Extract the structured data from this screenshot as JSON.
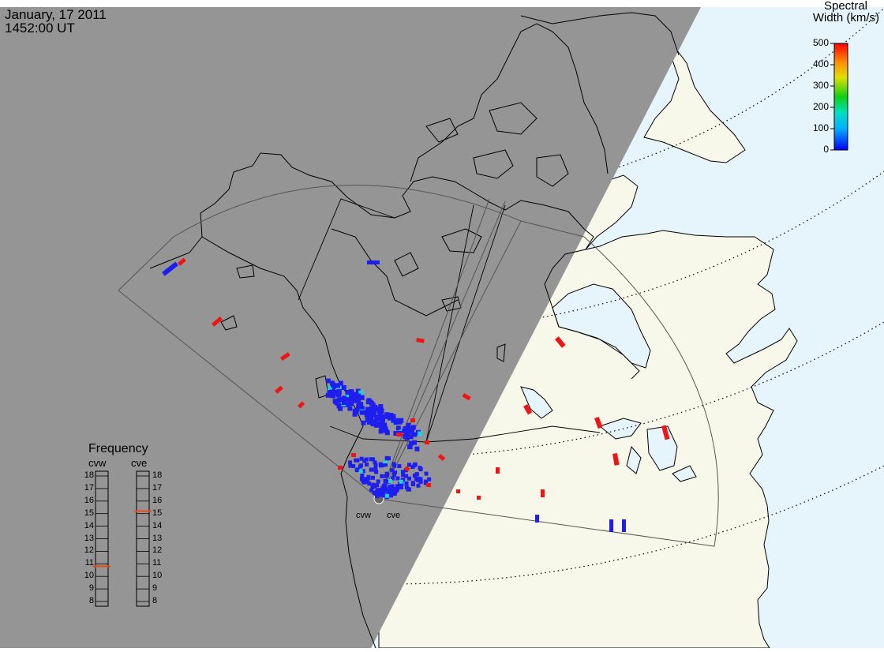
{
  "header": {
    "date": "January, 17 2011",
    "time": "1452:00 UT"
  },
  "colorbar": {
    "title_line1": "Spectral",
    "title_line2": "Width (km/s)",
    "ticks": [
      "500",
      "400",
      "300",
      "200",
      "100",
      "0"
    ],
    "min": 0,
    "max": 500
  },
  "frequency": {
    "title": "Frequency",
    "radars": [
      {
        "name": "cvw",
        "value": 10.8
      },
      {
        "name": "cve",
        "value": 15.2
      }
    ],
    "scale": [
      "18",
      "17",
      "16",
      "15",
      "14",
      "13",
      "12",
      "11",
      "10",
      "9",
      "8"
    ],
    "min": 8,
    "max": 18
  },
  "radar_sites": [
    {
      "label": "cvw"
    },
    {
      "label": "cve"
    }
  ],
  "colors": {
    "night": "#959595",
    "land_day": "#f8f8ea",
    "ocean_day": "#e6f4fc",
    "low_width": "#1e1ef0",
    "high_width": "#f01414",
    "mid_width": "#22d0d8",
    "freq_marker": "#e84a1a"
  }
}
